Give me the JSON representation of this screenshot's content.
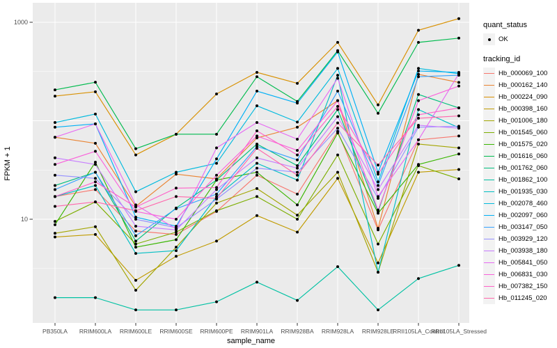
{
  "legend": {
    "quant_status_title": "quant_status",
    "quant_status_items": [
      {
        "label": "OK"
      }
    ],
    "tracking_id_title": "tracking_id"
  },
  "chart_data": {
    "type": "line",
    "title": "",
    "xlabel": "sample_name",
    "ylabel": "FPKM + 1",
    "y_scale": "log10",
    "ylim": [
      1,
      1500
    ],
    "grid": "major-and-minor, white on gray panel",
    "legend_position": "right",
    "panel_color": "#EBEBEB",
    "point_color": "#000000",
    "y_ticks": [
      {
        "label": "1000",
        "value": 1000
      },
      {
        "label": "10",
        "value": 10
      }
    ],
    "y_gridlines_major": [
      10,
      100,
      1000
    ],
    "y_gridlines_minor": [
      3.162,
      31.62,
      316.2
    ],
    "categories": [
      "PB350LA",
      "RRIM600LA",
      "RRIM600LE",
      "RRIM600SE",
      "RRIM600PE",
      "RRIM901LA",
      "RRIM928BA",
      "RRIM928LA",
      "RRIM928LE",
      "RRII105LA_Control",
      "RRII105LA_Stressed"
    ],
    "series": [
      {
        "name": "Hb_000069_100",
        "color": "#F8766D",
        "values": [
          17,
          20,
          7.6,
          7.0,
          12,
          28,
          18,
          78,
          7.8,
          64,
          70
        ]
      },
      {
        "name": "Hb_000162_140",
        "color": "#EA8331",
        "values": [
          68,
          59,
          13.5,
          28.7,
          25.7,
          67,
          86,
          160,
          8.1,
          296,
          245
        ]
      },
      {
        "name": "Hb_000224_090",
        "color": "#D89000",
        "values": [
          178,
          197,
          45,
          73,
          187,
          310,
          240,
          625,
          145,
          830,
          1090
        ]
      },
      {
        "name": "Hb_000398_160",
        "color": "#C09B00",
        "values": [
          6.6,
          7.0,
          2.4,
          4.2,
          6.0,
          10.9,
          7.4,
          26,
          3.6,
          30,
          32
        ]
      },
      {
        "name": "Hb_001006_180",
        "color": "#A3A500",
        "values": [
          7.2,
          8.4,
          1.9,
          5.2,
          14.6,
          20.5,
          11,
          30,
          2.9,
          58,
          53
        ]
      },
      {
        "name": "Hb_001545_060",
        "color": "#7CAE00",
        "values": [
          9.5,
          15,
          5.6,
          7.4,
          12.2,
          17,
          10,
          45,
          5.6,
          35,
          25.7
        ]
      },
      {
        "name": "Hb_001575_020",
        "color": "#39B600",
        "values": [
          8.8,
          38,
          5.2,
          6.2,
          25,
          30,
          14,
          75,
          11.5,
          36,
          46
        ]
      },
      {
        "name": "Hb_001616_060",
        "color": "#00BB4E",
        "values": [
          206,
          246,
          52,
          73,
          73,
          280,
          157,
          515,
          119,
          625,
          690
        ]
      },
      {
        "name": "Hb_001762_060",
        "color": "#00BF7D",
        "values": [
          22,
          30,
          6.0,
          13,
          25,
          58,
          35,
          130,
          12,
          185,
          135
        ]
      },
      {
        "name": "Hb_001862_100",
        "color": "#00C1A3",
        "values": [
          1.6,
          1.6,
          1.2,
          1.2,
          1.45,
          2.3,
          1.5,
          3.3,
          1.2,
          2.5,
          3.4
        ]
      },
      {
        "name": "Hb_001935_030",
        "color": "#00BFC4",
        "values": [
          17,
          22,
          4.5,
          4.8,
          17,
          37,
          25,
          290,
          2.9,
          130,
          85
        ]
      },
      {
        "name": "Hb_002078_460",
        "color": "#00BADE",
        "values": [
          96,
          117,
          19,
          30,
          37,
          142,
          97,
          340,
          24,
          340,
          300
        ]
      },
      {
        "name": "Hb_002097_060",
        "color": "#00B0F6",
        "values": [
          86,
          93,
          10.5,
          8.5,
          41,
          200,
          151,
          500,
          30,
          320,
          310
        ]
      },
      {
        "name": "Hb_003147_050",
        "color": "#35A2FF",
        "values": [
          20,
          30,
          6.8,
          12.8,
          18,
          55,
          40,
          200,
          22,
          280,
          290
        ]
      },
      {
        "name": "Hb_003929_120",
        "color": "#9590FF",
        "values": [
          28,
          26,
          10,
          8.2,
          16,
          33,
          30,
          84,
          16.3,
          86,
          88
        ]
      },
      {
        "name": "Hb_003938_180",
        "color": "#C77CFF",
        "values": [
          42,
          36,
          8.5,
          7.8,
          20,
          42,
          33,
          110,
          20,
          90,
          84
        ]
      },
      {
        "name": "Hb_005841_050",
        "color": "#E76BF3",
        "values": [
          68,
          93,
          14,
          8.0,
          53,
          96,
          65,
          270,
          17,
          64,
          300
        ]
      },
      {
        "name": "Hb_006831_030",
        "color": "#FA62DB",
        "values": [
          36,
          49,
          12,
          10,
          28,
          70,
          50,
          160,
          12.4,
          160,
          225
        ]
      },
      {
        "name": "Hb_007382_150",
        "color": "#FF61C9",
        "values": [
          17,
          24,
          13.3,
          20.7,
          21,
          79,
          45,
          140,
          28.7,
          115,
          135
        ]
      },
      {
        "name": "Hb_011245_020",
        "color": "#FF67AC",
        "values": [
          13.5,
          15,
          12.2,
          17,
          16.3,
          52.5,
          28,
          95,
          35.5,
          106,
          112
        ]
      }
    ]
  }
}
